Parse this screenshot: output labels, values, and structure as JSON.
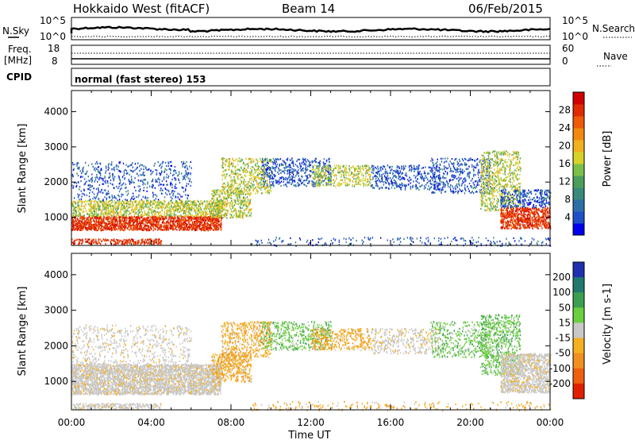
{
  "header": {
    "title": "Hokkaido West (fitACF)",
    "beam": "Beam 14",
    "date": "06/Feb/2015"
  },
  "noise_panel": {
    "left_label": "N.Sky",
    "right_label": "N.Search",
    "left_ticks": [
      "10^5",
      "10^0"
    ],
    "right_ticks": [
      "10^5",
      "10^0"
    ]
  },
  "freq_panel": {
    "left_label_top": "Freq.",
    "left_label_bottom": "[MHz]",
    "right_label": "Nave",
    "left_ticks": [
      "18",
      "8"
    ],
    "right_ticks": [
      "60",
      "0"
    ]
  },
  "cpid_panel": {
    "label": "CPID",
    "text": "normal (fast stereo) 153"
  },
  "x_axis": {
    "label": "Time UT",
    "ticks": [
      "00:00",
      "04:00",
      "08:00",
      "12:00",
      "16:00",
      "20:00",
      "00:00"
    ]
  },
  "chart_data": [
    {
      "type": "heatmap",
      "title": "",
      "quantity": "Power",
      "ylabel": "Slant Range [km]",
      "xlabel": "Time UT",
      "y_ticks": [
        "1000",
        "2000",
        "3000",
        "4000"
      ],
      "ylim": [
        200,
        4600
      ],
      "xlim_hours": [
        0,
        24
      ],
      "colorbar": {
        "label": "Power [dB]",
        "ticks": [
          "4",
          "8",
          "12",
          "16",
          "20",
          "24",
          "28"
        ],
        "range": [
          0,
          32
        ],
        "colors": [
          "#0000ee",
          "#2050c8",
          "#2e6fa6",
          "#3a8a7a",
          "#4d9e5a",
          "#7cc04a",
          "#d7d22a",
          "#f0b020",
          "#f28a10",
          "#ee5a08",
          "#e02a00",
          "#d00000"
        ]
      }
    },
    {
      "type": "heatmap",
      "title": "",
      "quantity": "Velocity",
      "ylabel": "Slant Range [km]",
      "xlabel": "Time UT",
      "y_ticks": [
        "1000",
        "2000",
        "3000",
        "4000"
      ],
      "ylim": [
        200,
        4600
      ],
      "xlim_hours": [
        0,
        24
      ],
      "colorbar": {
        "label": "Velocity [m s-1]",
        "ticks": [
          "200",
          "100",
          "50",
          "15",
          "-15",
          "-50",
          "-100",
          "-200"
        ],
        "colors": [
          "#2030b0",
          "#207a70",
          "#3aa050",
          "#6ccf40",
          "#c8c8c8",
          "#f4b020",
          "#f09020",
          "#ee6010",
          "#e02000"
        ]
      }
    }
  ],
  "colors": {
    "gray_scatter": "#c8c8c8"
  }
}
